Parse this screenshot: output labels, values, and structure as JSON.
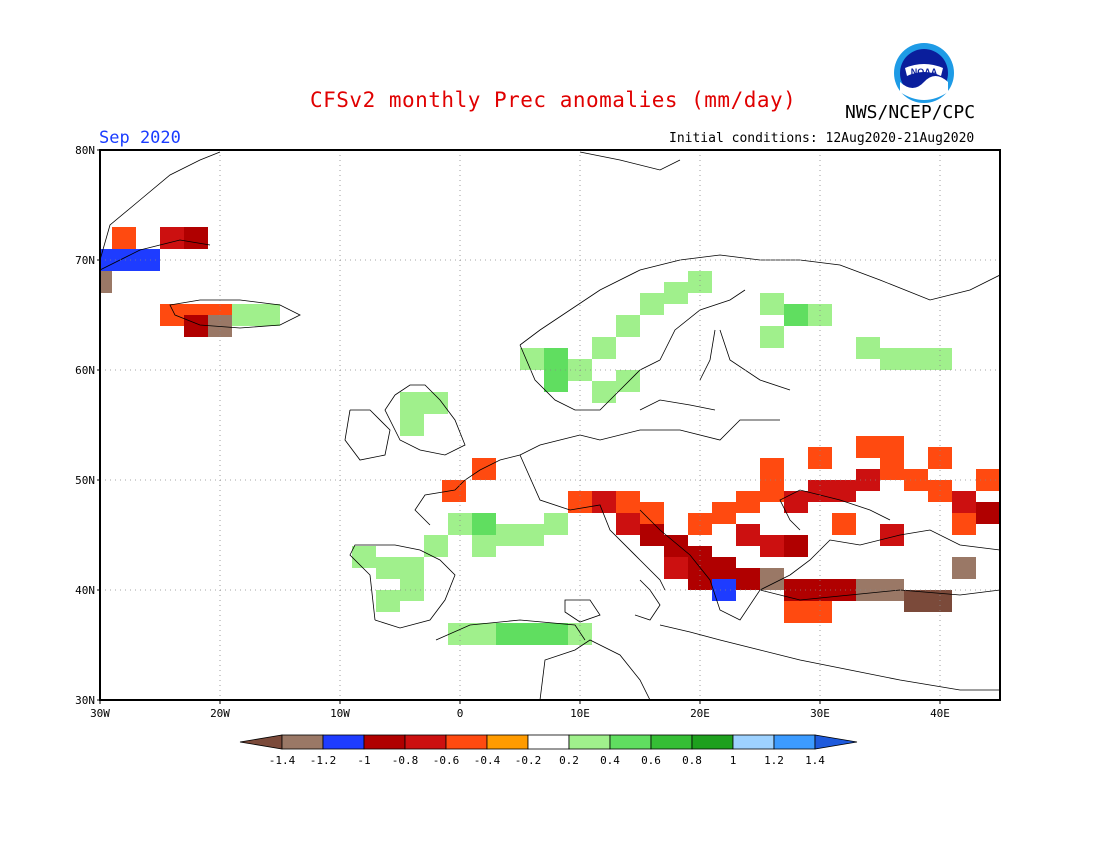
{
  "header": {
    "title": "CFSv2 monthly Prec anomalies (mm/day)",
    "agency": "NWS/NCEP/CPC",
    "logo_text": "NOAA",
    "month": "Sep 2020",
    "init_conditions": "Initial conditions: 12Aug2020-21Aug2020"
  },
  "map": {
    "region": "Europe",
    "lon_range": [
      -30,
      45
    ],
    "lat_range": [
      30,
      80
    ],
    "lat_ticks": [
      "30N",
      "40N",
      "50N",
      "60N",
      "70N",
      "80N"
    ],
    "lon_ticks": [
      "30W",
      "20W",
      "10W",
      "0",
      "10E",
      "20E",
      "30E",
      "40E"
    ],
    "gridlines": true
  },
  "colorbar": {
    "labels": [
      "-1.4",
      "-1.2",
      "-1",
      "-0.8",
      "-0.6",
      "-0.4",
      "-0.2",
      "0.2",
      "0.4",
      "0.6",
      "0.8",
      "1",
      "1.2",
      "1.4"
    ],
    "colors": [
      "#7b4a3a",
      "#9a7866",
      "#1e3cff",
      "#b00000",
      "#cc1010",
      "#ff4a10",
      "#ff9b00",
      "#ffffff",
      "#a0f08c",
      "#60de60",
      "#35be35",
      "#1ea01e",
      "#9ed2ff",
      "#3c9bff",
      "#1e5adc"
    ]
  },
  "anomaly_cells": [
    {
      "lon": -30,
      "lat": 70,
      "v": -1.0
    },
    {
      "lon": -28,
      "lat": 70,
      "v": -1.0
    },
    {
      "lon": -26,
      "lat": 70,
      "v": -1.0
    },
    {
      "lon": -24,
      "lat": 72,
      "v": -0.6
    },
    {
      "lon": -22,
      "lat": 72,
      "v": -0.8
    },
    {
      "lon": -28,
      "lat": 72,
      "v": -0.4
    },
    {
      "lon": -30,
      "lat": 68,
      "v": -1.2
    },
    {
      "lon": -24,
      "lat": 65,
      "v": -0.4
    },
    {
      "lon": -22,
      "lat": 65,
      "v": -0.4
    },
    {
      "lon": -20,
      "lat": 65,
      "v": -0.4
    },
    {
      "lon": -22,
      "lat": 64,
      "v": -0.8
    },
    {
      "lon": -20,
      "lat": 64,
      "v": -1.2
    },
    {
      "lon": -18,
      "lat": 65,
      "v": 0.4
    },
    {
      "lon": -16,
      "lat": 65,
      "v": 0.4
    },
    {
      "lon": -4,
      "lat": 57,
      "v": 0.4
    },
    {
      "lon": -2,
      "lat": 57,
      "v": 0.4
    },
    {
      "lon": -4,
      "lat": 55,
      "v": 0.4
    },
    {
      "lon": 6,
      "lat": 61,
      "v": 0.4
    },
    {
      "lon": 8,
      "lat": 61,
      "v": 0.6
    },
    {
      "lon": 8,
      "lat": 59,
      "v": 0.6
    },
    {
      "lon": 10,
      "lat": 60,
      "v": 0.4
    },
    {
      "lon": 12,
      "lat": 62,
      "v": 0.4
    },
    {
      "lon": 14,
      "lat": 64,
      "v": 0.4
    },
    {
      "lon": 16,
      "lat": 66,
      "v": 0.4
    },
    {
      "lon": 18,
      "lat": 67,
      "v": 0.4
    },
    {
      "lon": 20,
      "lat": 68,
      "v": 0.4
    },
    {
      "lon": 14,
      "lat": 59,
      "v": 0.4
    },
    {
      "lon": 12,
      "lat": 58,
      "v": 0.4
    },
    {
      "lon": 26,
      "lat": 66,
      "v": 0.4
    },
    {
      "lon": 28,
      "lat": 65,
      "v": 0.6
    },
    {
      "lon": 30,
      "lat": 65,
      "v": 0.4
    },
    {
      "lon": 26,
      "lat": 63,
      "v": 0.4
    },
    {
      "lon": 34,
      "lat": 62,
      "v": 0.4
    },
    {
      "lon": 36,
      "lat": 61,
      "v": 0.4
    },
    {
      "lon": 38,
      "lat": 61,
      "v": 0.4
    },
    {
      "lon": 40,
      "lat": 61,
      "v": 0.4
    },
    {
      "lon": 0,
      "lat": 46,
      "v": 0.4
    },
    {
      "lon": 2,
      "lat": 46,
      "v": 0.6
    },
    {
      "lon": 4,
      "lat": 45,
      "v": 0.4
    },
    {
      "lon": 2,
      "lat": 44,
      "v": 0.4
    },
    {
      "lon": -2,
      "lat": 44,
      "v": 0.4
    },
    {
      "lon": 6,
      "lat": 45,
      "v": 0.4
    },
    {
      "lon": 8,
      "lat": 46,
      "v": 0.4
    },
    {
      "lon": -8,
      "lat": 43,
      "v": 0.4
    },
    {
      "lon": -6,
      "lat": 42,
      "v": 0.4
    },
    {
      "lon": -4,
      "lat": 42,
      "v": 0.4
    },
    {
      "lon": -6,
      "lat": 39,
      "v": 0.4
    },
    {
      "lon": -4,
      "lat": 40,
      "v": 0.4
    },
    {
      "lon": 0,
      "lat": 36,
      "v": 0.4
    },
    {
      "lon": 2,
      "lat": 36,
      "v": 0.4
    },
    {
      "lon": 4,
      "lat": 36,
      "v": 0.6
    },
    {
      "lon": 6,
      "lat": 36,
      "v": 0.6
    },
    {
      "lon": 8,
      "lat": 36,
      "v": 0.6
    },
    {
      "lon": 10,
      "lat": 36,
      "v": 0.4
    },
    {
      "lon": 10,
      "lat": 48,
      "v": -0.4
    },
    {
      "lon": 12,
      "lat": 48,
      "v": -0.6
    },
    {
      "lon": 14,
      "lat": 48,
      "v": -0.4
    },
    {
      "lon": 16,
      "lat": 47,
      "v": -0.4
    },
    {
      "lon": 14,
      "lat": 46,
      "v": -0.6
    },
    {
      "lon": 16,
      "lat": 45,
      "v": -0.8
    },
    {
      "lon": 18,
      "lat": 44,
      "v": -0.8
    },
    {
      "lon": 20,
      "lat": 43,
      "v": -0.8
    },
    {
      "lon": 22,
      "lat": 42,
      "v": -0.8
    },
    {
      "lon": 22,
      "lat": 40,
      "v": -1.0
    },
    {
      "lon": 20,
      "lat": 41,
      "v": -0.8
    },
    {
      "lon": 24,
      "lat": 41,
      "v": -0.8
    },
    {
      "lon": 18,
      "lat": 42,
      "v": -0.6
    },
    {
      "lon": 20,
      "lat": 46,
      "v": -0.4
    },
    {
      "lon": 22,
      "lat": 47,
      "v": -0.4
    },
    {
      "lon": 24,
      "lat": 45,
      "v": -0.6
    },
    {
      "lon": 26,
      "lat": 44,
      "v": -0.6
    },
    {
      "lon": 28,
      "lat": 44,
      "v": -0.8
    },
    {
      "lon": 24,
      "lat": 48,
      "v": -0.4
    },
    {
      "lon": 26,
      "lat": 49,
      "v": -0.4
    },
    {
      "lon": 28,
      "lat": 48,
      "v": -0.6
    },
    {
      "lon": 30,
      "lat": 49,
      "v": -0.6
    },
    {
      "lon": 32,
      "lat": 49,
      "v": -0.6
    },
    {
      "lon": 34,
      "lat": 50,
      "v": -0.6
    },
    {
      "lon": 36,
      "lat": 51,
      "v": -0.4
    },
    {
      "lon": 38,
      "lat": 50,
      "v": -0.4
    },
    {
      "lon": 40,
      "lat": 49,
      "v": -0.4
    },
    {
      "lon": 42,
      "lat": 48,
      "v": -0.6
    },
    {
      "lon": 44,
      "lat": 47,
      "v": -0.8
    },
    {
      "lon": 42,
      "lat": 46,
      "v": -0.4
    },
    {
      "lon": 30,
      "lat": 52,
      "v": -0.4
    },
    {
      "lon": 34,
      "lat": 53,
      "v": -0.4
    },
    {
      "lon": 36,
      "lat": 53,
      "v": -0.4
    },
    {
      "lon": 40,
      "lat": 52,
      "v": -0.4
    },
    {
      "lon": 44,
      "lat": 50,
      "v": -0.4
    },
    {
      "lon": 26,
      "lat": 51,
      "v": -0.4
    },
    {
      "lon": 32,
      "lat": 46,
      "v": -0.4
    },
    {
      "lon": 36,
      "lat": 45,
      "v": -0.6
    },
    {
      "lon": 26,
      "lat": 41,
      "v": -1.2
    },
    {
      "lon": 28,
      "lat": 40,
      "v": -0.8
    },
    {
      "lon": 30,
      "lat": 40,
      "v": -0.8
    },
    {
      "lon": 32,
      "lat": 40,
      "v": -0.8
    },
    {
      "lon": 34,
      "lat": 40,
      "v": -1.2
    },
    {
      "lon": 36,
      "lat": 40,
      "v": -1.2
    },
    {
      "lon": 38,
      "lat": 39,
      "v": -1.4
    },
    {
      "lon": 40,
      "lat": 39,
      "v": -1.4
    },
    {
      "lon": 42,
      "lat": 42,
      "v": -1.2
    },
    {
      "lon": 28,
      "lat": 38,
      "v": -0.4
    },
    {
      "lon": 30,
      "lat": 38,
      "v": -0.4
    },
    {
      "lon": 2,
      "lat": 51,
      "v": -0.4
    },
    {
      "lon": -0.5,
      "lat": 49,
      "v": -0.4
    }
  ]
}
